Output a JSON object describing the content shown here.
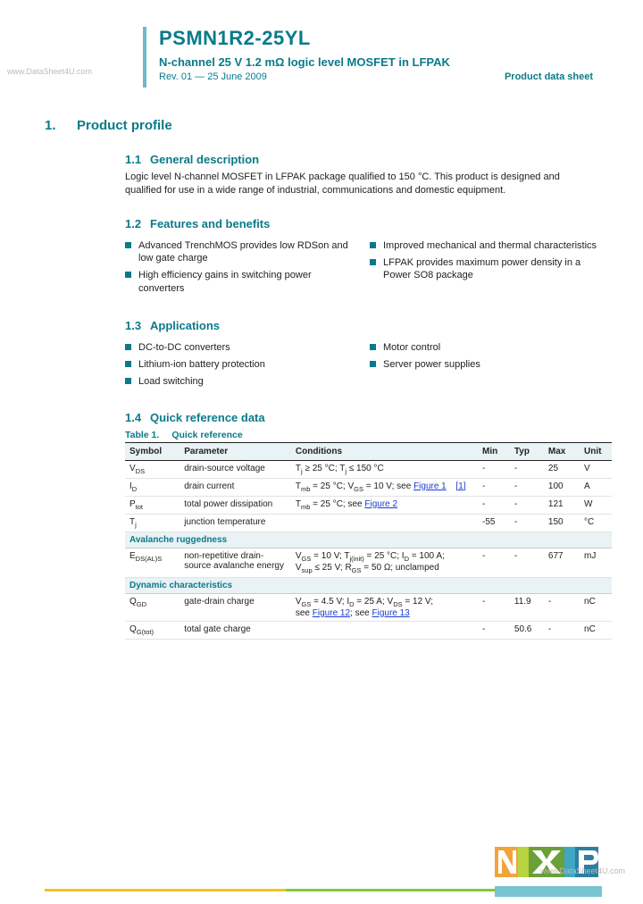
{
  "watermarks": {
    "left": "www.DataSheet4U.com",
    "right": "www.DataSheet4U.com"
  },
  "header": {
    "accent_color": "#6db9c8",
    "title_color": "#0a7a8a",
    "part_number": "PSMN1R2-25YL",
    "subtitle": "N-channel 25 V 1.2 mΩ logic level MOSFET in LFPAK",
    "revision": "Rev. 01 — 25 June 2009",
    "doc_type": "Product data sheet"
  },
  "section1": {
    "number": "1.",
    "title": "Product profile"
  },
  "s11": {
    "num": "1.1",
    "title": "General description",
    "body": "Logic level N-channel MOSFET in LFPAK package qualified to 150 °C. This product is designed and qualified for use in a wide range of industrial, communications and domestic equipment."
  },
  "s12": {
    "num": "1.2",
    "title": "Features and benefits",
    "left": [
      "Advanced TrenchMOS provides low RDSon and low gate charge",
      "High efficiency gains in switching power converters"
    ],
    "right": [
      "Improved mechanical and thermal characteristics",
      "LFPAK provides maximum power density in a Power SO8 package"
    ]
  },
  "s13": {
    "num": "1.3",
    "title": "Applications",
    "left": [
      "DC-to-DC converters",
      "Lithium-ion battery protection",
      "Load switching"
    ],
    "right": [
      "Motor control",
      "Server power supplies"
    ]
  },
  "s14": {
    "num": "1.4",
    "title": "Quick reference data"
  },
  "table": {
    "caption_num": "Table 1.",
    "caption_title": "Quick reference",
    "headers": [
      "Symbol",
      "Parameter",
      "Conditions",
      "",
      "Min",
      "Typ",
      "Max",
      "Unit"
    ],
    "section_a": "Avalanche ruggedness",
    "section_b": "Dynamic characteristics",
    "rows": {
      "r1": {
        "sym": "V",
        "sub": "DS",
        "par": "drain-source voltage",
        "con": "T<sub>j</sub> ≥ 25 °C; T<sub>j</sub> ≤ 150 °C",
        "ref": "",
        "min": "-",
        "typ": "-",
        "max": "25",
        "unit": "V"
      },
      "r2": {
        "sym": "I",
        "sub": "D",
        "par": "drain current",
        "con": "T<sub>mb</sub> = 25 °C; V<sub>GS</sub> = 10 V; see <span class='fig-link'>Figure 1</span>",
        "ref": "[1]",
        "min": "-",
        "typ": "-",
        "max": "100",
        "unit": "A"
      },
      "r3": {
        "sym": "P",
        "sub": "tot",
        "par": "total power dissipation",
        "con": "T<sub>mb</sub> = 25 °C; see <span class='fig-link'>Figure 2</span>",
        "ref": "",
        "min": "-",
        "typ": "-",
        "max": "121",
        "unit": "W"
      },
      "r4": {
        "sym": "T",
        "sub": "j",
        "par": "junction temperature",
        "con": "",
        "ref": "",
        "min": "-55",
        "typ": "-",
        "max": "150",
        "unit": "°C"
      },
      "r5": {
        "sym": "E",
        "sub": "DS(AL)S",
        "par": "non-repetitive drain-source avalanche energy",
        "con": "V<sub>GS</sub> = 10 V; T<sub>j(init)</sub> = 25 °C; I<sub>D</sub> = 100 A; V<sub>sup</sub> ≤ 25 V; R<sub>GS</sub> = 50 Ω; unclamped",
        "ref": "",
        "min": "-",
        "typ": "-",
        "max": "677",
        "unit": "mJ"
      },
      "r6": {
        "sym": "Q",
        "sub": "GD",
        "par": "gate-drain charge",
        "con": "V<sub>GS</sub> = 4.5 V; I<sub>D</sub> = 25 A; V<sub>DS</sub> = 12 V; see <span class='fig-link'>Figure 12</span>; see <span class='fig-link'>Figure 13</span>",
        "ref": "",
        "min": "-",
        "typ": "11.9",
        "max": "-",
        "unit": "nC"
      },
      "r7": {
        "sym": "Q",
        "sub": "G(tot)",
        "par": "total gate charge",
        "con": "",
        "ref": "",
        "min": "-",
        "typ": "50.6",
        "max": "-",
        "unit": "nC"
      }
    }
  },
  "logo": {
    "colors": {
      "orange": "#f1a33c",
      "lime": "#b8d441",
      "green": "#6aa038",
      "blue": "#3fa7c4",
      "dblue": "#2c7fa0"
    }
  }
}
